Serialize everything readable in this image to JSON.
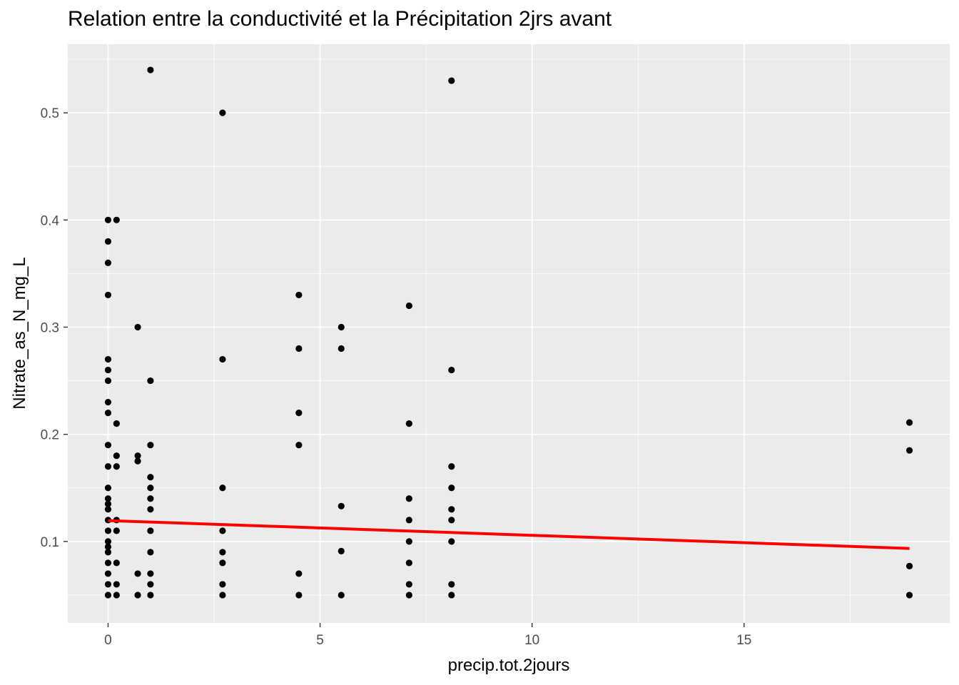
{
  "chart_data": {
    "type": "scatter",
    "title": "Relation entre la conductivité et la Précipitation 2jrs avant",
    "xlabel": "precip.tot.2jours",
    "ylabel": "Nitrate_as_N_mg_L",
    "xlim": [
      -0.95,
      19.85
    ],
    "ylim": [
      0.024,
      0.564
    ],
    "x_ticks": [
      0,
      5,
      10,
      15
    ],
    "x_tick_labels": [
      "0",
      "5",
      "10",
      "15"
    ],
    "y_ticks": [
      0.1,
      0.2,
      0.3,
      0.4,
      0.5
    ],
    "y_tick_labels": [
      "0.1",
      "0.2",
      "0.3",
      "0.4",
      "0.5"
    ],
    "grid": true,
    "background": "#ebebeb",
    "point_color": "#000000",
    "points": [
      {
        "x": 0,
        "y": 0.4
      },
      {
        "x": 0,
        "y": 0.38
      },
      {
        "x": 0,
        "y": 0.36
      },
      {
        "x": 0,
        "y": 0.33
      },
      {
        "x": 0,
        "y": 0.27
      },
      {
        "x": 0,
        "y": 0.26
      },
      {
        "x": 0,
        "y": 0.25
      },
      {
        "x": 0,
        "y": 0.23
      },
      {
        "x": 0,
        "y": 0.22
      },
      {
        "x": 0,
        "y": 0.19
      },
      {
        "x": 0,
        "y": 0.17
      },
      {
        "x": 0,
        "y": 0.15
      },
      {
        "x": 0,
        "y": 0.14
      },
      {
        "x": 0,
        "y": 0.135
      },
      {
        "x": 0,
        "y": 0.13
      },
      {
        "x": 0,
        "y": 0.12
      },
      {
        "x": 0,
        "y": 0.11
      },
      {
        "x": 0,
        "y": 0.1
      },
      {
        "x": 0,
        "y": 0.095
      },
      {
        "x": 0,
        "y": 0.09
      },
      {
        "x": 0,
        "y": 0.08
      },
      {
        "x": 0,
        "y": 0.07
      },
      {
        "x": 0,
        "y": 0.06
      },
      {
        "x": 0,
        "y": 0.05
      },
      {
        "x": 0.2,
        "y": 0.4
      },
      {
        "x": 0.2,
        "y": 0.21
      },
      {
        "x": 0.2,
        "y": 0.18
      },
      {
        "x": 0.2,
        "y": 0.17
      },
      {
        "x": 0.2,
        "y": 0.12
      },
      {
        "x": 0.2,
        "y": 0.11
      },
      {
        "x": 0.2,
        "y": 0.08
      },
      {
        "x": 0.2,
        "y": 0.06
      },
      {
        "x": 0.2,
        "y": 0.05
      },
      {
        "x": 0.7,
        "y": 0.3
      },
      {
        "x": 0.7,
        "y": 0.18
      },
      {
        "x": 0.7,
        "y": 0.175
      },
      {
        "x": 0.7,
        "y": 0.07
      },
      {
        "x": 0.7,
        "y": 0.05
      },
      {
        "x": 1.0,
        "y": 0.54
      },
      {
        "x": 1.0,
        "y": 0.25
      },
      {
        "x": 1.0,
        "y": 0.19
      },
      {
        "x": 1.0,
        "y": 0.16
      },
      {
        "x": 1.0,
        "y": 0.15
      },
      {
        "x": 1.0,
        "y": 0.14
      },
      {
        "x": 1.0,
        "y": 0.13
      },
      {
        "x": 1.0,
        "y": 0.11
      },
      {
        "x": 1.0,
        "y": 0.09
      },
      {
        "x": 1.0,
        "y": 0.07
      },
      {
        "x": 1.0,
        "y": 0.06
      },
      {
        "x": 1.0,
        "y": 0.05
      },
      {
        "x": 2.7,
        "y": 0.5
      },
      {
        "x": 2.7,
        "y": 0.27
      },
      {
        "x": 2.7,
        "y": 0.15
      },
      {
        "x": 2.7,
        "y": 0.11
      },
      {
        "x": 2.7,
        "y": 0.09
      },
      {
        "x": 2.7,
        "y": 0.08
      },
      {
        "x": 2.7,
        "y": 0.06
      },
      {
        "x": 2.7,
        "y": 0.05
      },
      {
        "x": 4.5,
        "y": 0.33
      },
      {
        "x": 4.5,
        "y": 0.28
      },
      {
        "x": 4.5,
        "y": 0.22
      },
      {
        "x": 4.5,
        "y": 0.19
      },
      {
        "x": 4.5,
        "y": 0.07
      },
      {
        "x": 4.5,
        "y": 0.05
      },
      {
        "x": 5.5,
        "y": 0.3
      },
      {
        "x": 5.5,
        "y": 0.28
      },
      {
        "x": 5.5,
        "y": 0.133
      },
      {
        "x": 5.5,
        "y": 0.091
      },
      {
        "x": 5.5,
        "y": 0.05
      },
      {
        "x": 7.1,
        "y": 0.32
      },
      {
        "x": 7.1,
        "y": 0.21
      },
      {
        "x": 7.1,
        "y": 0.14
      },
      {
        "x": 7.1,
        "y": 0.12
      },
      {
        "x": 7.1,
        "y": 0.1
      },
      {
        "x": 7.1,
        "y": 0.08
      },
      {
        "x": 7.1,
        "y": 0.06
      },
      {
        "x": 7.1,
        "y": 0.05
      },
      {
        "x": 8.1,
        "y": 0.53
      },
      {
        "x": 8.1,
        "y": 0.26
      },
      {
        "x": 8.1,
        "y": 0.17
      },
      {
        "x": 8.1,
        "y": 0.15
      },
      {
        "x": 8.1,
        "y": 0.13
      },
      {
        "x": 8.1,
        "y": 0.12
      },
      {
        "x": 8.1,
        "y": 0.1
      },
      {
        "x": 8.1,
        "y": 0.06
      },
      {
        "x": 8.1,
        "y": 0.05
      },
      {
        "x": 18.9,
        "y": 0.211
      },
      {
        "x": 18.9,
        "y": 0.185
      },
      {
        "x": 18.9,
        "y": 0.077
      },
      {
        "x": 18.9,
        "y": 0.05
      }
    ],
    "trend_line": {
      "color": "#ff0000",
      "points": [
        {
          "x": 0,
          "y": 0.1195
        },
        {
          "x": 18.9,
          "y": 0.0935
        }
      ]
    }
  }
}
